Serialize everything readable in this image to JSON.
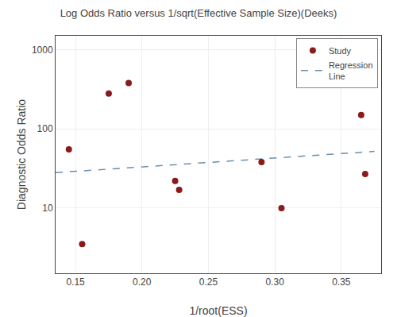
{
  "chart_data": {
    "type": "scatter",
    "title": "Log Odds Ratio versus 1/sqrt(Effective Sample Size)(Deeks)",
    "x_label": "1/root(ESS)",
    "y_label": "Diagnostic Odds Ratio",
    "series": [
      {
        "name": "Study",
        "type": "scatter",
        "marker": "circle",
        "color": "#8B1A1A",
        "x": [
          0.145,
          0.155,
          0.175,
          0.19,
          0.225,
          0.228,
          0.29,
          0.305,
          0.365,
          0.368
        ],
        "values": [
          55,
          3.5,
          280,
          380,
          22,
          17,
          38,
          10,
          150,
          27
        ]
      },
      {
        "name": "Regression\nLine",
        "type": "line",
        "line_style": "dashed",
        "color": "#6a8faf",
        "x": [
          0.135,
          0.375
        ],
        "values": [
          28,
          52
        ]
      }
    ],
    "xlim": [
      0.135,
      0.38
    ],
    "xticks": [
      0.15,
      {
        "value": 0.2,
        "label": "0.20"
      },
      {
        "value": 0.25,
        "label": "0.25"
      },
      {
        "value": 0.3,
        "label": "0.30"
      },
      0.35
    ],
    "ylim": [
      1.5,
      1500
    ],
    "yticks": [
      10,
      100,
      1000
    ],
    "log": "y",
    "grid": true,
    "legend": "upper right"
  }
}
